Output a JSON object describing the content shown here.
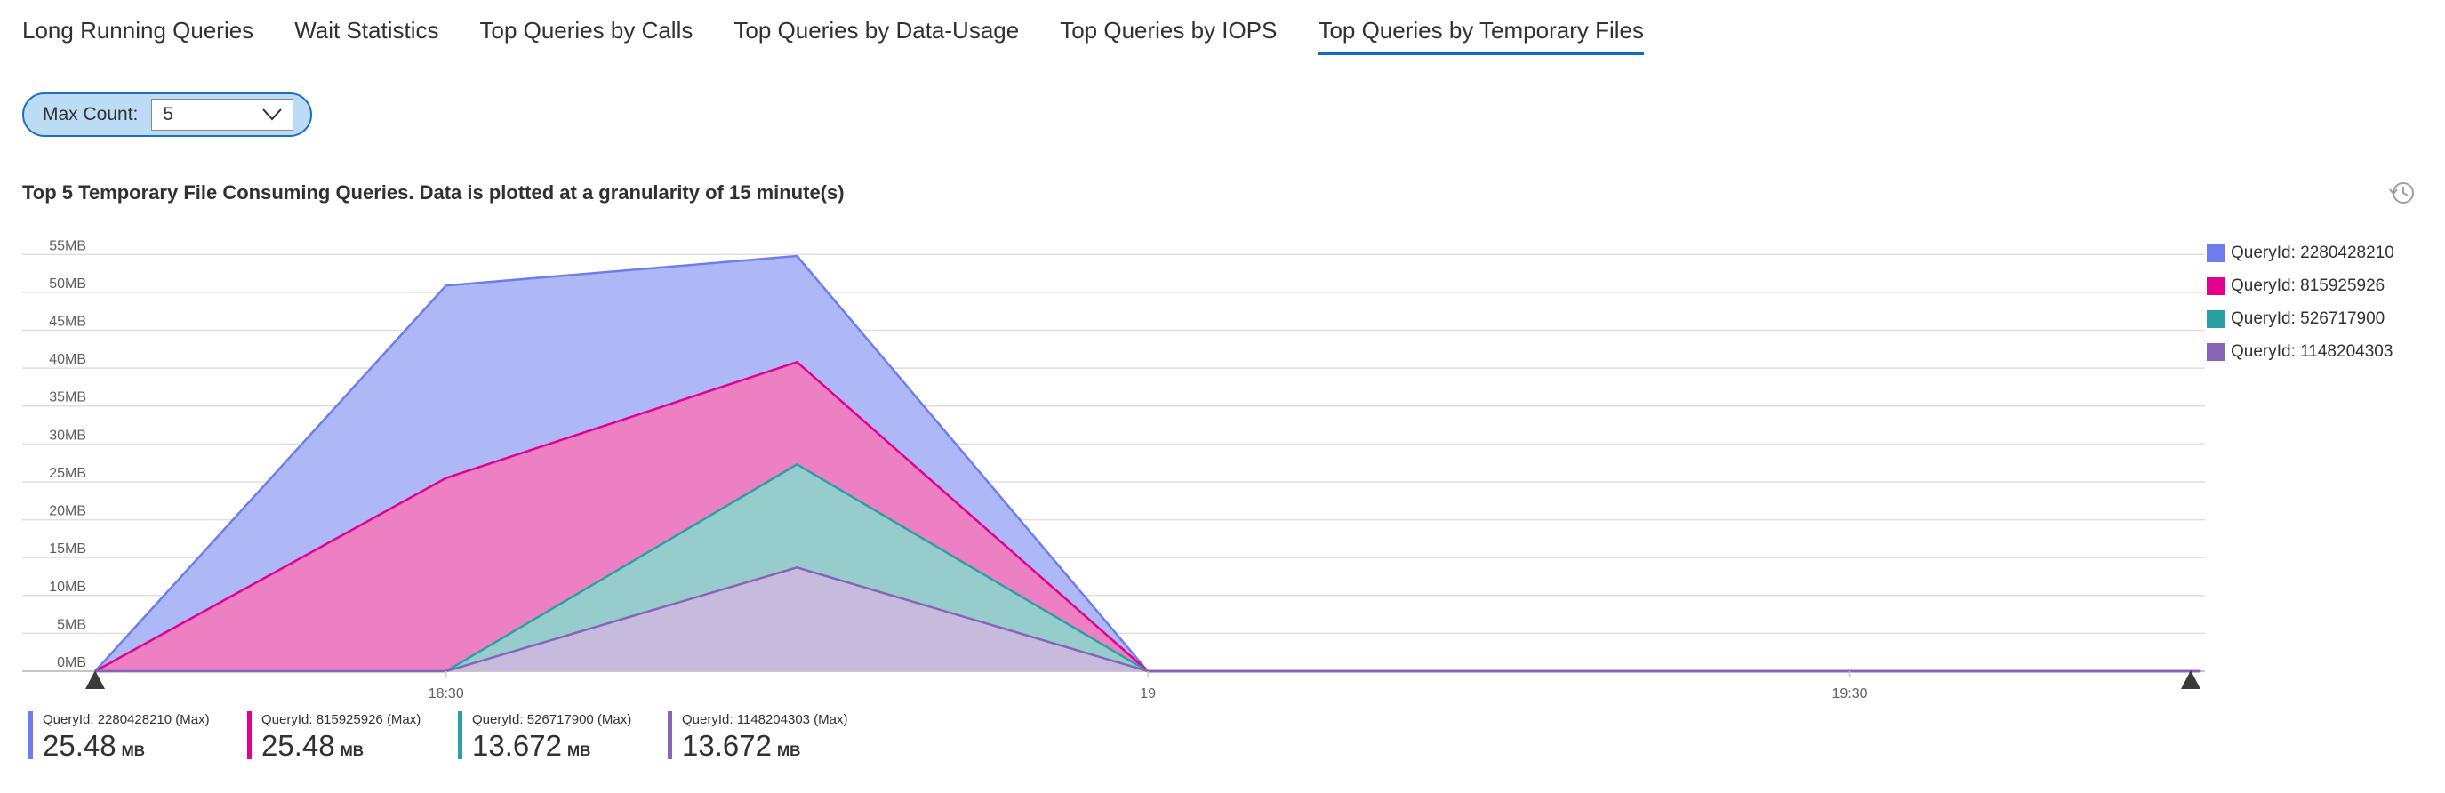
{
  "tabs": [
    {
      "label": "Long Running Queries",
      "active": false
    },
    {
      "label": "Wait Statistics",
      "active": false
    },
    {
      "label": "Top Queries by Calls",
      "active": false
    },
    {
      "label": "Top Queries by Data-Usage",
      "active": false
    },
    {
      "label": "Top Queries by IOPS",
      "active": false
    },
    {
      "label": "Top Queries by Temporary Files",
      "active": true
    }
  ],
  "filter": {
    "label": "Max Count:",
    "value": "5"
  },
  "icons": {
    "dropdown": "chevron-down-icon",
    "history": "history-icon"
  },
  "chart_data": {
    "type": "area",
    "title": "Top 5 Temporary File Consuming Queries. Data is plotted at a granularity of 15 minute(s)",
    "y_ticks": [
      "0MB",
      "5MB",
      "10MB",
      "15MB",
      "20MB",
      "25MB",
      "30MB",
      "35MB",
      "40MB",
      "45MB",
      "50MB",
      "55MB"
    ],
    "ylim": [
      0,
      57.5
    ],
    "x_ticks": [
      "18:30",
      "19",
      "19:30"
    ],
    "x": [
      "18:15",
      "18:30",
      "18:45",
      "19:00",
      "19:15",
      "19:30",
      "19:45"
    ],
    "stacked": false,
    "grid": true,
    "legend_position": "right",
    "series": [
      {
        "name": "QueryId: 2280428210",
        "color": "#6d7ded",
        "fill": "#aab4f5",
        "values": [
          0,
          50.9,
          54.8,
          0,
          0,
          0,
          0
        ]
      },
      {
        "name": "QueryId: 815925926",
        "color": "#e3008c",
        "fill": "#f07cbf",
        "values": [
          0,
          25.5,
          40.8,
          0,
          0,
          0,
          0
        ]
      },
      {
        "name": "QueryId: 526717900",
        "color": "#2aa0a4",
        "fill": "#91d0cc",
        "values": [
          0,
          0,
          27.3,
          0,
          0,
          0,
          0
        ]
      },
      {
        "name": "QueryId: 1148204303",
        "color": "#8764b8",
        "fill": "#c8b8dd",
        "values": [
          0,
          0,
          13.7,
          0,
          0,
          0,
          0
        ]
      }
    ]
  },
  "summary": [
    {
      "label": "QueryId: 2280428210 (Max)",
      "value": "25.48",
      "unit": "MB",
      "color": "#6d7ded"
    },
    {
      "label": "QueryId: 815925926 (Max)",
      "value": "25.48",
      "unit": "MB",
      "color": "#e3008c"
    },
    {
      "label": "QueryId: 526717900 (Max)",
      "value": "13.672",
      "unit": "MB",
      "color": "#2aa0a4"
    },
    {
      "label": "QueryId: 1148204303 (Max)",
      "value": "13.672",
      "unit": "MB",
      "color": "#8764b8"
    }
  ]
}
